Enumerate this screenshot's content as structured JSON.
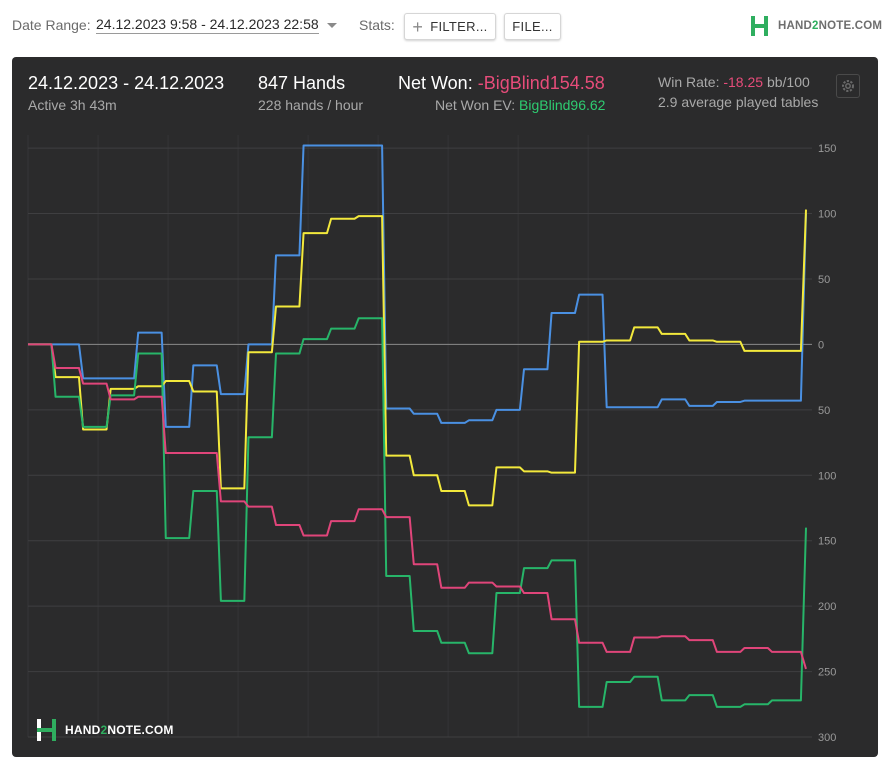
{
  "toolbar": {
    "date_range_label": "Date Range:",
    "date_range_value": "24.12.2023 9:58 - 24.12.2023 22:58",
    "stats_label": "Stats:",
    "filter_label": "FILTER...",
    "file_label": "FILE...",
    "brand_pre": "HAND",
    "brand_two": "2",
    "brand_post": "NOTE.COM"
  },
  "summary": {
    "date_span": "24.12.2023 - 24.12.2023",
    "active_time": "Active 3h 43m",
    "hands": "847 Hands",
    "hands_per_hour": "228 hands / hour",
    "net_won_label": "Net Won:",
    "net_won_value": "-BigBlind154.58",
    "net_won_ev_label": "Net Won  EV:",
    "net_won_ev_value": "BigBlind96.62",
    "win_rate_label": "Win Rate:",
    "win_rate_value": "-18.25",
    "win_rate_unit": "bb/100",
    "avg_tables": "2.9 average played tables"
  },
  "watermark": {
    "pre": "HAND",
    "two": "2",
    "post": "NOTE.COM"
  },
  "colors": {
    "blue": "#4a90e2",
    "yellow": "#f3e93c",
    "green": "#27b569",
    "pink": "#e0457a",
    "panel_bg": "#2b2b2c",
    "brand_green": "#2fae5f"
  },
  "chart_data": {
    "type": "line",
    "x_label": "",
    "y_label": "",
    "ylim": [
      -300,
      160
    ],
    "yticks": [
      150,
      100,
      50,
      0,
      -50,
      -100,
      -150,
      -200,
      -250,
      -300
    ],
    "ytick_labels": [
      "150",
      "100",
      "50",
      "0",
      "50",
      "100",
      "150",
      "200",
      "250",
      "300"
    ],
    "grid": true,
    "x": [
      0,
      30,
      60,
      90,
      120,
      150,
      180,
      210,
      240,
      270,
      300,
      330,
      360,
      390,
      420,
      450,
      480,
      510,
      540,
      570,
      600,
      630,
      660,
      690,
      720,
      750,
      780,
      810,
      847
    ],
    "series": [
      {
        "color": "blue",
        "values": [
          0,
          0,
          -26,
          -26,
          9,
          -63,
          -16,
          -38,
          0,
          68,
          152,
          152,
          152,
          -49,
          -53,
          -60,
          -58,
          -50,
          -19,
          24,
          38,
          -48,
          -48,
          -42,
          -47,
          -44,
          -43,
          -43,
          100
        ]
      },
      {
        "color": "yellow",
        "values": [
          0,
          -25,
          -65,
          -34,
          -32,
          -28,
          -36,
          -110,
          -6,
          29,
          85,
          96,
          98,
          -85,
          -100,
          -112,
          -123,
          -94,
          -97,
          -98,
          2,
          3,
          13,
          8,
          3,
          2,
          -5,
          -5,
          103
        ]
      },
      {
        "color": "green",
        "values": [
          0,
          -40,
          -63,
          -39,
          -7,
          -148,
          -112,
          -196,
          -71,
          -7,
          4,
          12,
          20,
          -177,
          -219,
          -228,
          -236,
          -190,
          -171,
          -165,
          -277,
          -258,
          -254,
          -272,
          -268,
          -277,
          -275,
          -272,
          -140
        ]
      },
      {
        "color": "pink",
        "values": [
          0,
          -18,
          -30,
          -42,
          -40,
          -83,
          -83,
          -120,
          -124,
          -138,
          -146,
          -135,
          -126,
          -132,
          -168,
          -186,
          -182,
          -185,
          -190,
          -210,
          -228,
          -235,
          -224,
          -223,
          -226,
          -235,
          -232,
          -235,
          -248
        ]
      }
    ]
  }
}
